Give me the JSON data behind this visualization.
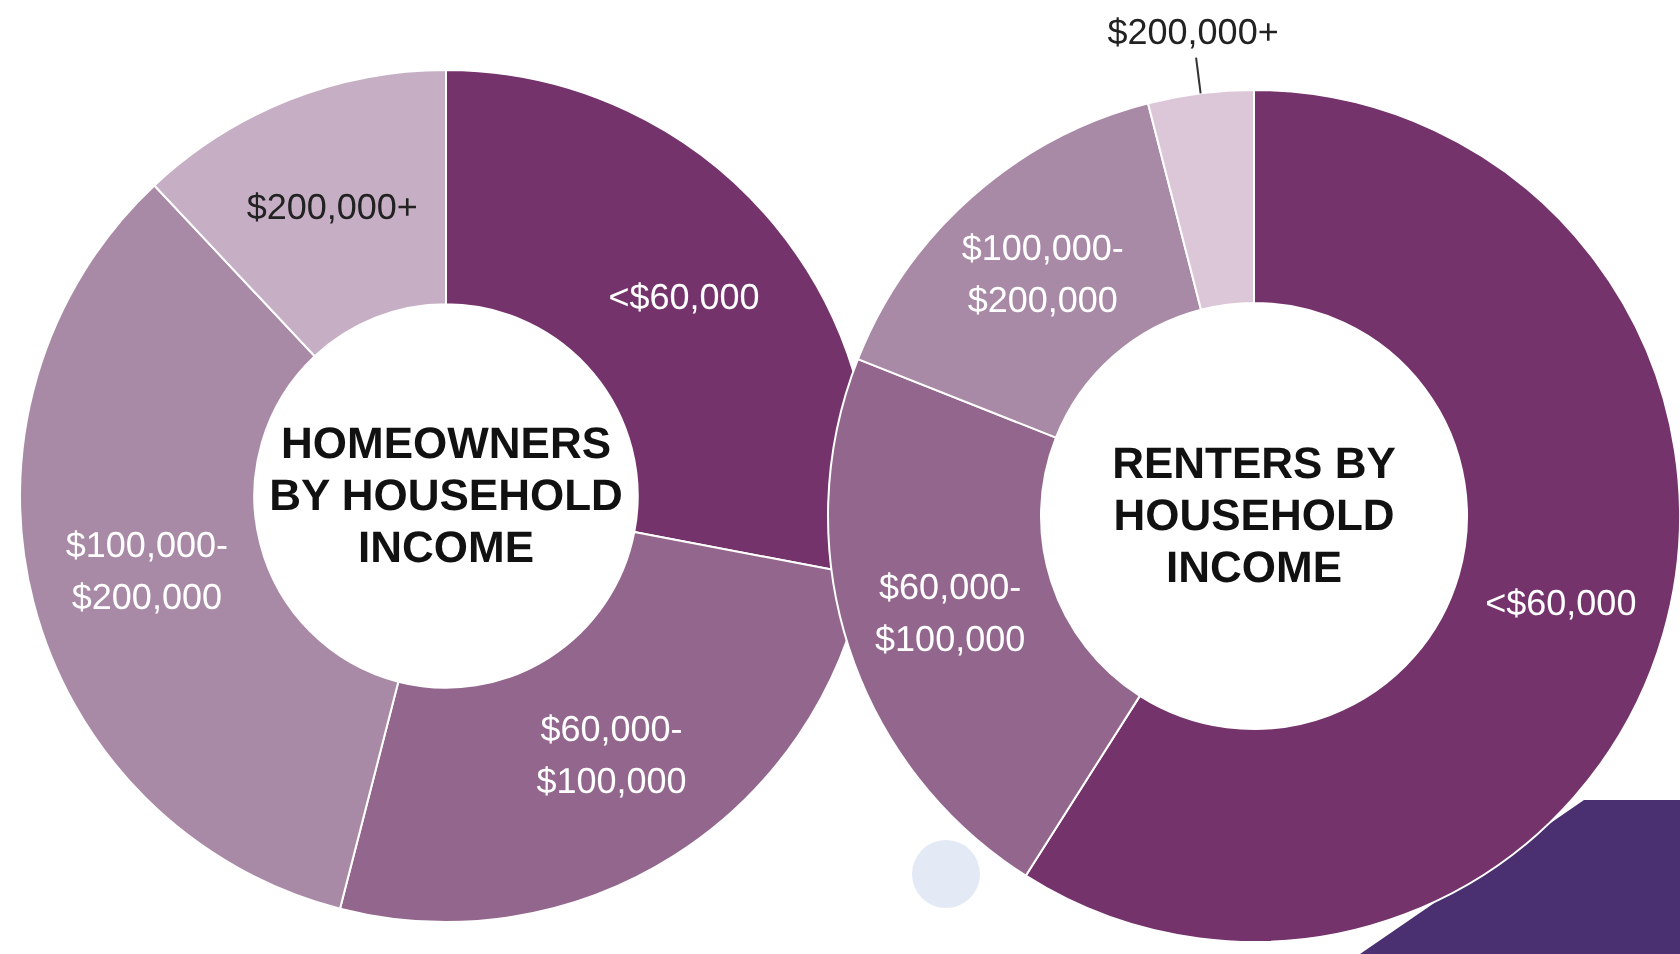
{
  "chart_data": [
    {
      "type": "donut",
      "title": "HOMEOWNERS BY HOUSEHOLD INCOME",
      "categories": [
        "<$60,000",
        "$60,000-$100,000",
        "$100,000-$200,000",
        "$200,000+"
      ],
      "values": [
        28,
        26,
        34,
        12
      ],
      "colors": [
        "#74336b",
        "#93678d",
        "#a98aa6",
        "#c6aec4"
      ],
      "legend": false
    },
    {
      "type": "donut",
      "title": "RENTERS BY HOUSEHOLD INCOME",
      "categories": [
        "<$60,000",
        "$60,000-$100,000",
        "$100,000-$200,000",
        "$200,000+"
      ],
      "values": [
        59,
        22,
        15,
        4
      ],
      "colors": [
        "#74336b",
        "#93678d",
        "#a98aa6",
        "#dcc7d9"
      ],
      "legend": false
    }
  ]
}
